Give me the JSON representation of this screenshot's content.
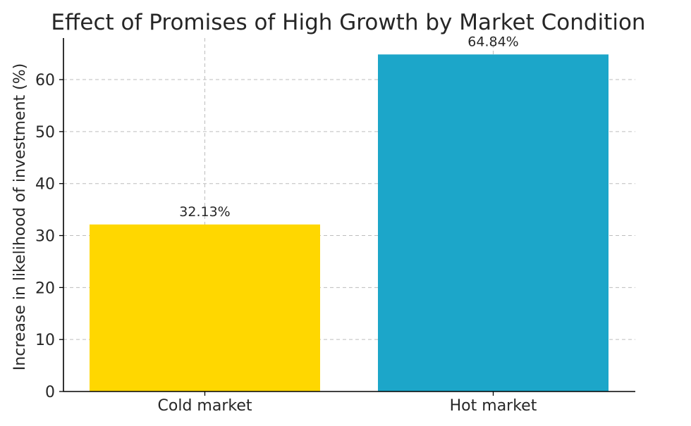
{
  "chart_data": {
    "type": "bar",
    "title": "Effect of Promises of High Growth by Market Condition",
    "xlabel": "",
    "ylabel": "Increase in likelihood of investment (%)",
    "categories": [
      "Cold market",
      "Hot market"
    ],
    "values": [
      32.13,
      64.84
    ],
    "data_labels": [
      "32.13%",
      "64.84%"
    ],
    "colors": [
      "#FFD700",
      "#1CA6C9"
    ],
    "ylim": [
      0,
      68
    ],
    "yticks": [
      0,
      10,
      20,
      30,
      40,
      50,
      60
    ],
    "grid": true,
    "legend": "none"
  }
}
